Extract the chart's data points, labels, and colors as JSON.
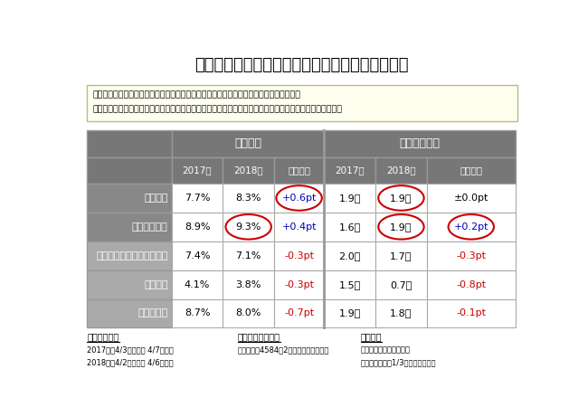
{
  "title": "視聴割合と平均視聴回数の比較【朝の情報番組】",
  "note_lines": [
    "視聴割合が最も高い番組は「スッキリ！！」、昨年からの上昇が高い番組は「あさイチ」",
    "平均視聴回数が多い番組は「あさイチ」「スッキリ！！」、昨年からの上昇が高い番組は「スッキリ！！」"
  ],
  "header1": [
    "視聴割合",
    "平均視聴回数"
  ],
  "header2": [
    "2017年",
    "2018年",
    "昨年比較",
    "2017年",
    "2018年",
    "昨年比較"
  ],
  "row_labels": [
    "あさイチ",
    "スッキリ！！",
    "羽鳥慎一モーニングショー",
    "ビビット",
    "とくダネ！"
  ],
  "data": [
    [
      "7.7%",
      "8.3%",
      "+0.6pt",
      "1.9回",
      "1.9回",
      "±0.0pt"
    ],
    [
      "8.9%",
      "9.3%",
      "+0.4pt",
      "1.6回",
      "1.9回",
      "+0.2pt"
    ],
    [
      "7.4%",
      "7.1%",
      "-0.3pt",
      "2.0回",
      "1.7回",
      "-0.3pt"
    ],
    [
      "4.1%",
      "3.8%",
      "-0.3pt",
      "1.5回",
      "0.7回",
      "-0.8pt"
    ],
    [
      "8.7%",
      "8.0%",
      "-0.7pt",
      "1.9回",
      "1.8回",
      "-0.1pt"
    ]
  ],
  "circle_cells": [
    [
      0,
      2
    ],
    [
      0,
      4
    ],
    [
      1,
      1
    ],
    [
      1,
      4
    ],
    [
      1,
      5
    ]
  ],
  "positive_color": "#0000bb",
  "negative_color": "#cc0000",
  "neutral_color": "#000000",
  "header_bg": "#777777",
  "label_bg_top": "#888888",
  "label_bg_bot": "#aaaaaa",
  "data_bg": "#ffffff",
  "note_bg": "#fffff0",
  "note_border": "#bbbb88",
  "footer_data": [
    [
      "集計対象期間",
      "集計対象モニター",
      "視聴条件"
    ],
    [
      "2017年：4/3（月）～ 4/7（金）",
      "個人全体：4584（2期間有効モニター）",
      "当該放送回の視聴時間が"
    ],
    [
      "2018年：4/2（月）～ 4/6（金）",
      "",
      "番組放送時間の1/3以上であること"
    ]
  ],
  "bg_color": "#ffffff",
  "circle_color": "#cc0000"
}
